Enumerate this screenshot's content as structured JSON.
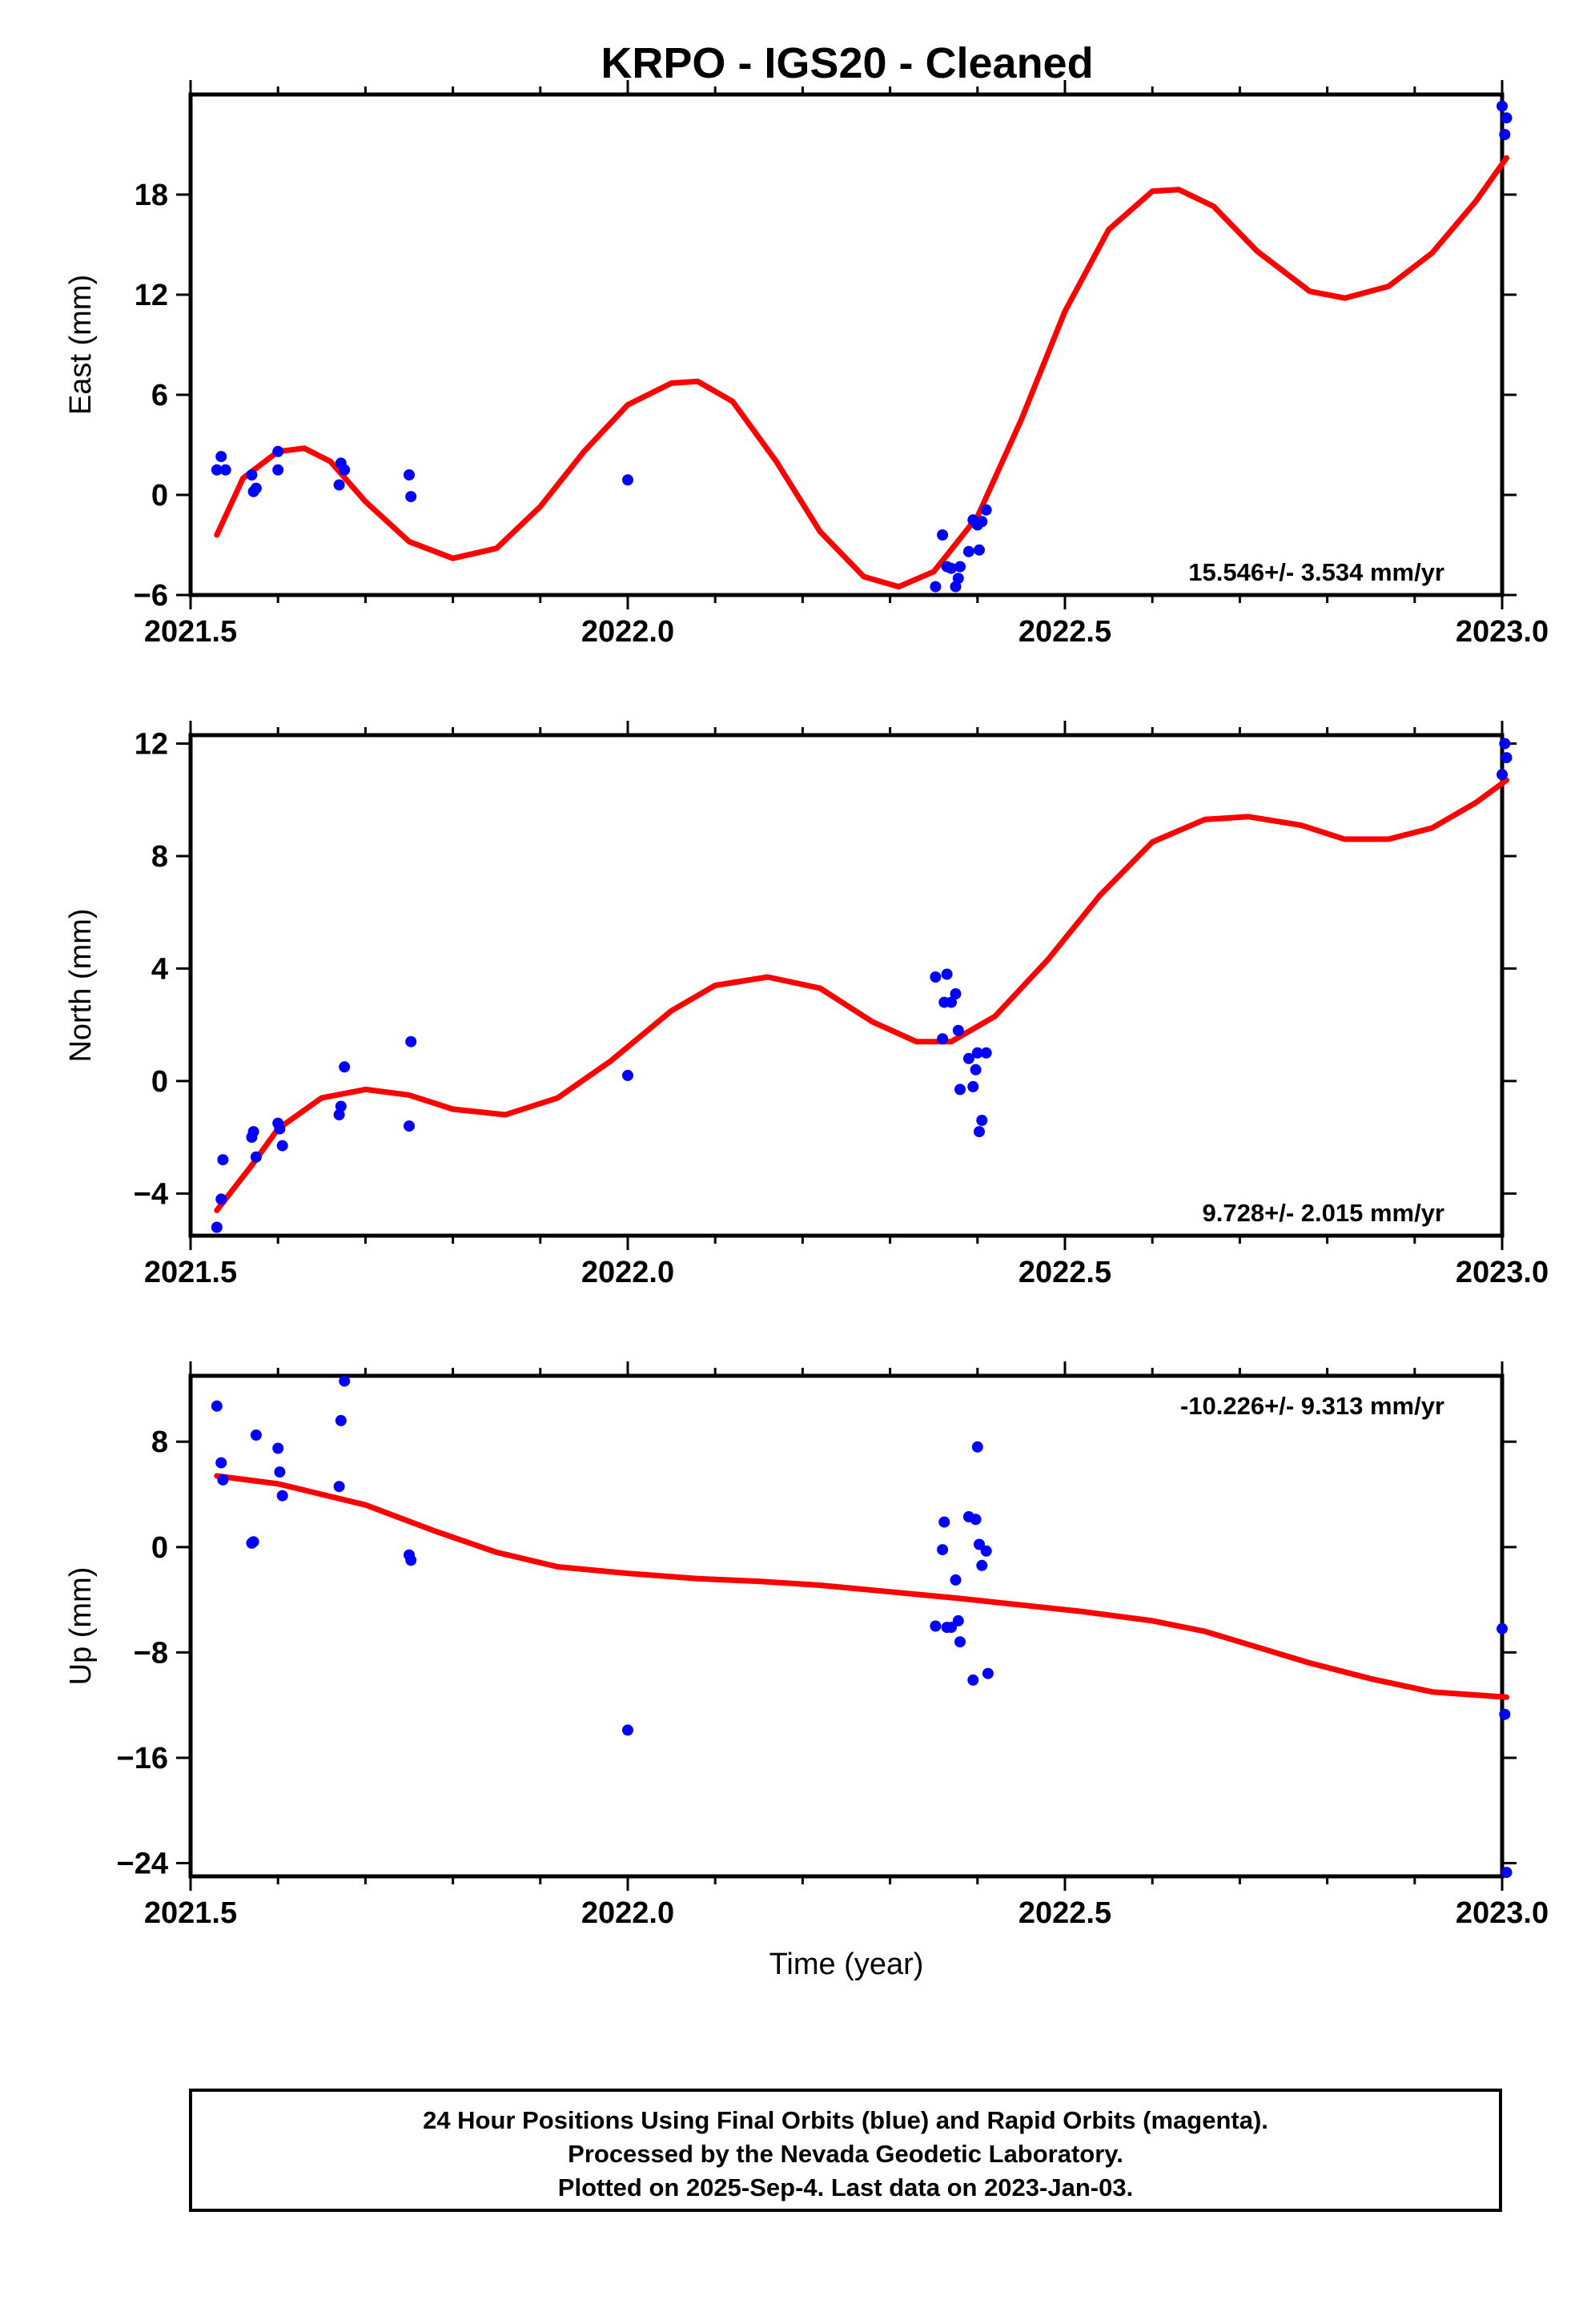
{
  "title": "KRPO  - IGS20 - Cleaned",
  "footer": {
    "lines": [
      "24 Hour Positions Using Final Orbits (blue) and Rapid Orbits (magenta).",
      "Processed by the Nevada Geodetic Laboratory.",
      "Plotted on 2025-Sep-4. Last data on 2023-Jan-03."
    ]
  },
  "colors": {
    "points": "#0000ff",
    "fit": "#ff0000",
    "frame": "#000000"
  },
  "chart_data": [
    {
      "type": "scatter",
      "ylabel": "East (mm)",
      "xlim": [
        2021.5,
        2023.0
      ],
      "ylim": [
        -6,
        24
      ],
      "xticks": [
        "2021.5",
        "2022.0",
        "2022.5",
        "2023.0"
      ],
      "yticks": [
        -6,
        0,
        6,
        12,
        18
      ],
      "rate_label": "15.546+/- 3.534 mm/yr",
      "rate_position": "bottom-right",
      "points": [
        [
          2021.53,
          1.5
        ],
        [
          2021.535,
          2.3
        ],
        [
          2021.54,
          1.5
        ],
        [
          2021.57,
          1.2
        ],
        [
          2021.572,
          0.2
        ],
        [
          2021.575,
          0.4
        ],
        [
          2021.6,
          1.5
        ],
        [
          2021.6,
          2.6
        ],
        [
          2021.67,
          0.6
        ],
        [
          2021.672,
          1.9
        ],
        [
          2021.676,
          1.5
        ],
        [
          2021.75,
          1.2
        ],
        [
          2021.752,
          -0.1
        ],
        [
          2022.0,
          0.9
        ],
        [
          2022.352,
          -5.5
        ],
        [
          2022.36,
          -2.4
        ],
        [
          2022.365,
          -4.3
        ],
        [
          2022.37,
          -4.4
        ],
        [
          2022.375,
          -5.5
        ],
        [
          2022.378,
          -5.0
        ],
        [
          2022.38,
          -4.3
        ],
        [
          2022.39,
          -3.4
        ],
        [
          2022.395,
          -1.5
        ],
        [
          2022.4,
          -1.8
        ],
        [
          2022.402,
          -3.3
        ],
        [
          2022.405,
          -1.6
        ],
        [
          2022.41,
          -0.9
        ],
        [
          2023.0,
          23.3
        ],
        [
          2023.003,
          21.6
        ],
        [
          2023.005,
          22.6
        ]
      ],
      "fit": [
        [
          2021.53,
          -2.4
        ],
        [
          2021.56,
          1.0
        ],
        [
          2021.6,
          2.6
        ],
        [
          2021.63,
          2.8
        ],
        [
          2021.66,
          2.0
        ],
        [
          2021.7,
          -0.4
        ],
        [
          2021.75,
          -2.8
        ],
        [
          2021.8,
          -3.8
        ],
        [
          2021.85,
          -3.2
        ],
        [
          2021.9,
          -0.7
        ],
        [
          2021.95,
          2.6
        ],
        [
          2022.0,
          5.4
        ],
        [
          2022.05,
          6.7
        ],
        [
          2022.08,
          6.8
        ],
        [
          2022.12,
          5.6
        ],
        [
          2022.17,
          2.0
        ],
        [
          2022.22,
          -2.2
        ],
        [
          2022.27,
          -4.9
        ],
        [
          2022.31,
          -5.5
        ],
        [
          2022.35,
          -4.6
        ],
        [
          2022.4,
          -1.3
        ],
        [
          2022.45,
          4.5
        ],
        [
          2022.5,
          11.0
        ],
        [
          2022.55,
          15.9
        ],
        [
          2022.6,
          18.2
        ],
        [
          2022.63,
          18.3
        ],
        [
          2022.67,
          17.3
        ],
        [
          2022.72,
          14.6
        ],
        [
          2022.78,
          12.2
        ],
        [
          2022.82,
          11.8
        ],
        [
          2022.87,
          12.5
        ],
        [
          2022.92,
          14.5
        ],
        [
          2022.97,
          17.6
        ],
        [
          2023.005,
          20.2
        ]
      ]
    },
    {
      "type": "scatter",
      "ylabel": "North (mm)",
      "xlim": [
        2021.5,
        2023.0
      ],
      "ylim": [
        -5.5,
        12.3
      ],
      "xticks": [
        "2021.5",
        "2022.0",
        "2022.5",
        "2023.0"
      ],
      "yticks": [
        -4,
        0,
        4,
        8,
        12
      ],
      "rate_label": "9.728+/- 2.015 mm/yr",
      "rate_position": "bottom-right",
      "points": [
        [
          2021.53,
          -5.2
        ],
        [
          2021.535,
          -4.2
        ],
        [
          2021.537,
          -2.8
        ],
        [
          2021.57,
          -2.0
        ],
        [
          2021.572,
          -1.8
        ],
        [
          2021.575,
          -2.7
        ],
        [
          2021.6,
          -1.5
        ],
        [
          2021.602,
          -1.7
        ],
        [
          2021.605,
          -2.3
        ],
        [
          2021.67,
          -1.2
        ],
        [
          2021.672,
          -0.9
        ],
        [
          2021.676,
          0.5
        ],
        [
          2021.75,
          -1.6
        ],
        [
          2021.752,
          1.4
        ],
        [
          2022.0,
          0.2
        ],
        [
          2022.352,
          3.7
        ],
        [
          2022.36,
          1.5
        ],
        [
          2022.362,
          2.8
        ],
        [
          2022.365,
          3.8
        ],
        [
          2022.37,
          2.8
        ],
        [
          2022.375,
          3.1
        ],
        [
          2022.378,
          1.8
        ],
        [
          2022.38,
          -0.3
        ],
        [
          2022.39,
          0.8
        ],
        [
          2022.395,
          -0.2
        ],
        [
          2022.398,
          0.4
        ],
        [
          2022.4,
          1.0
        ],
        [
          2022.402,
          -1.8
        ],
        [
          2022.405,
          -1.4
        ],
        [
          2022.41,
          1.0
        ],
        [
          2023.0,
          10.9
        ],
        [
          2023.003,
          12.0
        ],
        [
          2023.005,
          11.5
        ]
      ],
      "fit": [
        [
          2021.53,
          -4.6
        ],
        [
          2021.57,
          -3.0
        ],
        [
          2021.6,
          -1.7
        ],
        [
          2021.65,
          -0.6
        ],
        [
          2021.7,
          -0.3
        ],
        [
          2021.75,
          -0.5
        ],
        [
          2021.8,
          -1.0
        ],
        [
          2021.86,
          -1.2
        ],
        [
          2021.92,
          -0.6
        ],
        [
          2021.98,
          0.7
        ],
        [
          2022.05,
          2.5
        ],
        [
          2022.1,
          3.4
        ],
        [
          2022.16,
          3.7
        ],
        [
          2022.22,
          3.3
        ],
        [
          2022.28,
          2.1
        ],
        [
          2022.33,
          1.4
        ],
        [
          2022.37,
          1.4
        ],
        [
          2022.42,
          2.3
        ],
        [
          2022.48,
          4.3
        ],
        [
          2022.54,
          6.6
        ],
        [
          2022.6,
          8.5
        ],
        [
          2022.66,
          9.3
        ],
        [
          2022.71,
          9.4
        ],
        [
          2022.77,
          9.1
        ],
        [
          2022.82,
          8.6
        ],
        [
          2022.87,
          8.6
        ],
        [
          2022.92,
          9.0
        ],
        [
          2022.97,
          9.9
        ],
        [
          2023.005,
          10.7
        ]
      ]
    },
    {
      "type": "scatter",
      "ylabel": "Up (mm)",
      "xlabel": "Time (year)",
      "xlim": [
        2021.5,
        2023.0
      ],
      "ylim": [
        -25,
        13
      ],
      "xticks": [
        "2021.5",
        "2022.0",
        "2022.5",
        "2023.0"
      ],
      "yticks": [
        -24,
        -16,
        -8,
        0,
        8
      ],
      "rate_label": "-10.226+/- 9.313 mm/yr",
      "rate_position": "top-right",
      "points": [
        [
          2021.53,
          10.7
        ],
        [
          2021.535,
          6.4
        ],
        [
          2021.537,
          5.1
        ],
        [
          2021.57,
          0.3
        ],
        [
          2021.572,
          0.4
        ],
        [
          2021.575,
          8.5
        ],
        [
          2021.6,
          7.5
        ],
        [
          2021.602,
          5.7
        ],
        [
          2021.605,
          3.9
        ],
        [
          2021.67,
          4.6
        ],
        [
          2021.672,
          9.6
        ],
        [
          2021.676,
          12.6
        ],
        [
          2021.75,
          -0.6
        ],
        [
          2021.752,
          -1.0
        ],
        [
          2022.0,
          -13.9
        ],
        [
          2022.352,
          -6.0
        ],
        [
          2022.36,
          -0.2
        ],
        [
          2022.362,
          1.9
        ],
        [
          2022.365,
          -6.1
        ],
        [
          2022.37,
          -6.1
        ],
        [
          2022.375,
          -2.5
        ],
        [
          2022.378,
          -5.6
        ],
        [
          2022.38,
          -7.2
        ],
        [
          2022.39,
          2.3
        ],
        [
          2022.395,
          -10.1
        ],
        [
          2022.398,
          2.1
        ],
        [
          2022.4,
          7.6
        ],
        [
          2022.402,
          0.2
        ],
        [
          2022.405,
          -1.4
        ],
        [
          2022.41,
          -0.3
        ],
        [
          2022.412,
          -9.6
        ],
        [
          2023.0,
          -6.2
        ],
        [
          2023.003,
          -12.7
        ],
        [
          2023.005,
          -24.7
        ]
      ],
      "fit": [
        [
          2021.53,
          5.4
        ],
        [
          2021.6,
          4.8
        ],
        [
          2021.7,
          3.2
        ],
        [
          2021.78,
          1.2
        ],
        [
          2021.85,
          -0.4
        ],
        [
          2021.92,
          -1.5
        ],
        [
          2022.0,
          -2.0
        ],
        [
          2022.08,
          -2.4
        ],
        [
          2022.15,
          -2.6
        ],
        [
          2022.22,
          -2.9
        ],
        [
          2022.3,
          -3.4
        ],
        [
          2022.38,
          -3.9
        ],
        [
          2022.45,
          -4.4
        ],
        [
          2022.52,
          -4.9
        ],
        [
          2022.6,
          -5.6
        ],
        [
          2022.66,
          -6.4
        ],
        [
          2022.72,
          -7.6
        ],
        [
          2022.78,
          -8.8
        ],
        [
          2022.85,
          -10.0
        ],
        [
          2022.92,
          -11.0
        ],
        [
          2023.005,
          -11.4
        ]
      ]
    }
  ]
}
